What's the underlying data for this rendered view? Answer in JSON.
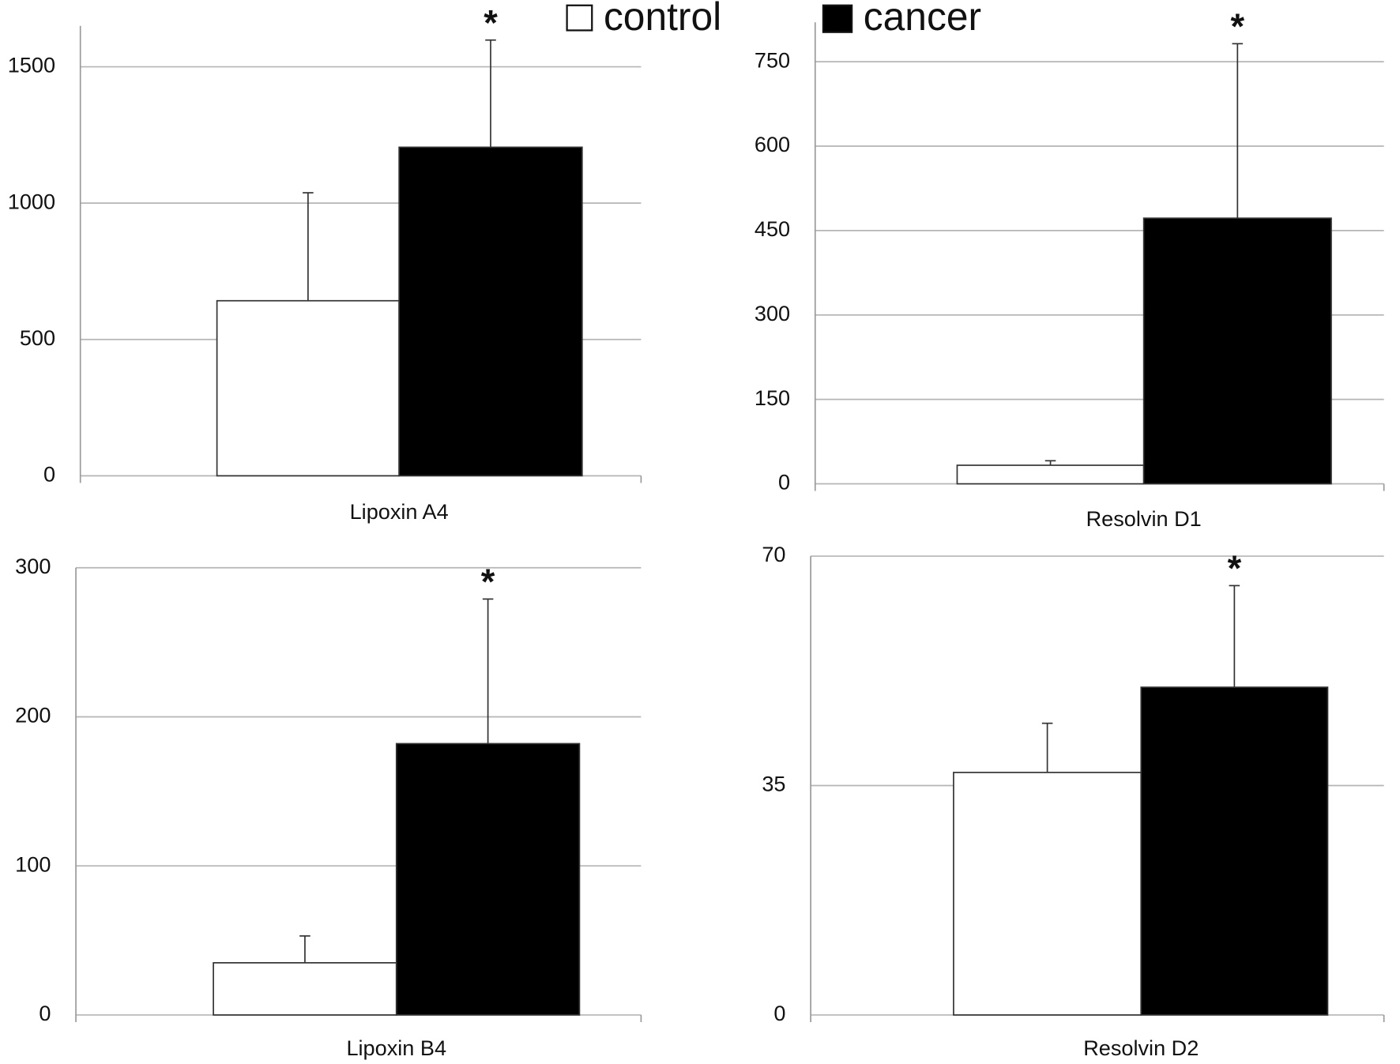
{
  "legend": {
    "entries": [
      {
        "name": "control",
        "color": "#ffffff"
      },
      {
        "name": "cancer",
        "color": "#000000"
      }
    ]
  },
  "chart_data": [
    {
      "type": "bar",
      "categories": [
        "Lipoxin A4"
      ],
      "ylim": [
        0,
        1650
      ],
      "yticks": [
        0,
        500,
        1000,
        1500
      ],
      "grid": true,
      "annotation": "*",
      "series": [
        {
          "values": [
            642
          ],
          "errors": [
            396
          ],
          "color": "#ffffff"
        },
        {
          "values": [
            1205
          ],
          "errors": [
            393
          ],
          "color": "#000000"
        }
      ]
    },
    {
      "type": "bar",
      "categories": [
        "Resolvin D1"
      ],
      "ylim": [
        0,
        820
      ],
      "yticks": [
        0,
        150,
        300,
        450,
        600,
        750
      ],
      "grid": true,
      "annotation": "*",
      "series": [
        {
          "values": [
            33
          ],
          "errors": [
            8
          ],
          "color": "#ffffff"
        },
        {
          "values": [
            472
          ],
          "errors": [
            310
          ],
          "color": "#000000"
        }
      ]
    },
    {
      "type": "bar",
      "categories": [
        "Lipoxin B4"
      ],
      "ylim": [
        0,
        300
      ],
      "yticks": [
        0,
        100,
        200,
        300
      ],
      "grid": true,
      "annotation": "*",
      "series": [
        {
          "values": [
            35
          ],
          "errors": [
            18
          ],
          "color": "#ffffff"
        },
        {
          "values": [
            182
          ],
          "errors": [
            97
          ],
          "color": "#000000"
        }
      ]
    },
    {
      "type": "bar",
      "categories": [
        "Resolvin D2"
      ],
      "ylim": [
        0,
        70
      ],
      "yticks": [
        0,
        35,
        70
      ],
      "grid": true,
      "annotation": "*",
      "series": [
        {
          "values": [
            37
          ],
          "errors": [
            7.5
          ],
          "color": "#ffffff"
        },
        {
          "values": [
            50
          ],
          "errors": [
            15.5
          ],
          "color": "#000000"
        }
      ]
    }
  ]
}
